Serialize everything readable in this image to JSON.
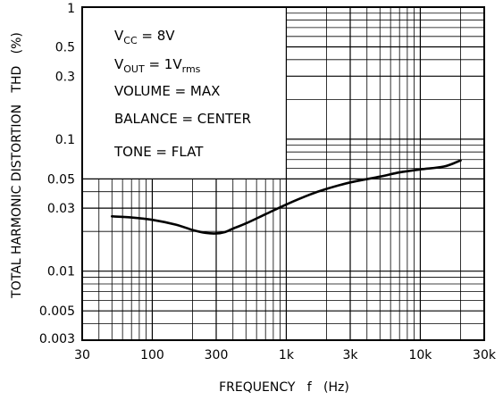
{
  "chart_data": {
    "type": "line",
    "title": "",
    "xlabel": "FREQUENCY   f   (Hz)",
    "ylabel": "TOTAL HARMONIC DISTORTION   THD   (%)",
    "x_scale": "log",
    "y_scale": "log",
    "xlim": [
      30,
      30000
    ],
    "ylim": [
      0.003,
      1
    ],
    "x_ticks": [
      30,
      100,
      300,
      1000,
      3000,
      10000,
      30000
    ],
    "x_tick_labels": [
      "30",
      "100",
      "300",
      "1k",
      "3k",
      "10k",
      "30k"
    ],
    "y_ticks": [
      0.003,
      0.005,
      0.01,
      0.03,
      0.05,
      0.1,
      0.3,
      0.5,
      1
    ],
    "y_tick_labels": [
      "0.003",
      "0.005",
      "0.01",
      "0.03",
      "0.05",
      "0.1",
      "0.3",
      "0.5",
      "1"
    ],
    "grid": true,
    "conditions": [
      {
        "main": "V",
        "sub": "CC",
        "rest": " = 8V"
      },
      {
        "main": "V",
        "sub": "OUT",
        "rest": " = 1V",
        "sub2": "rms"
      },
      {
        "main": "VOLUME = MAX"
      },
      {
        "main": "BALANCE = CENTER"
      },
      {
        "main": "TONE = FLAT"
      }
    ],
    "series": [
      {
        "x": [
          50,
          70,
          100,
          150,
          200,
          250,
          300,
          350,
          400,
          500,
          700,
          1000,
          1500,
          2000,
          3000,
          5000,
          7000,
          10000,
          15000,
          20000
        ],
        "y": [
          0.026,
          0.0255,
          0.0245,
          0.0225,
          0.0205,
          0.0195,
          0.0193,
          0.0198,
          0.021,
          0.023,
          0.027,
          0.032,
          0.038,
          0.042,
          0.047,
          0.052,
          0.056,
          0.059,
          0.062,
          0.069
        ]
      }
    ]
  }
}
